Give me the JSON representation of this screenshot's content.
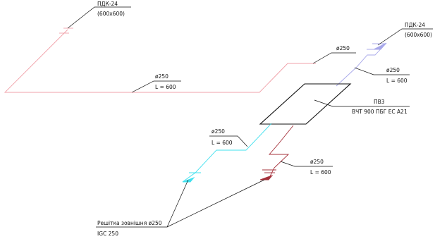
{
  "colors": {
    "background": "#ffffff",
    "duct_pink": "#f0a0a8",
    "duct_blue": "#a8a8ea",
    "duct_cyan": "#3fe0ee",
    "duct_darkred": "#a5303a",
    "unit_black": "#111111",
    "leader": "#111111"
  },
  "labels": {
    "pdk_left_name": "ПДК-24",
    "pdk_left_size": "(600x600)",
    "pdk_right_name": "ПДК-24",
    "pdk_right_size": "(600x600)",
    "diam_top": "ø250",
    "diam_pink_long": "ø250",
    "len_pink_long": "L = 600",
    "diam_blue": "ø250",
    "len_blue": "L = 600",
    "unit_name": "ПВ3",
    "unit_model": "ВЧТ 900 ПБГ ЕС А21",
    "diam_cyan": "ø250",
    "len_cyan": "L = 600",
    "diam_red": "ø250",
    "len_red": "L = 600",
    "grille_name": "Решітка зовнішня ø250",
    "grille_model": "IGC 250"
  }
}
